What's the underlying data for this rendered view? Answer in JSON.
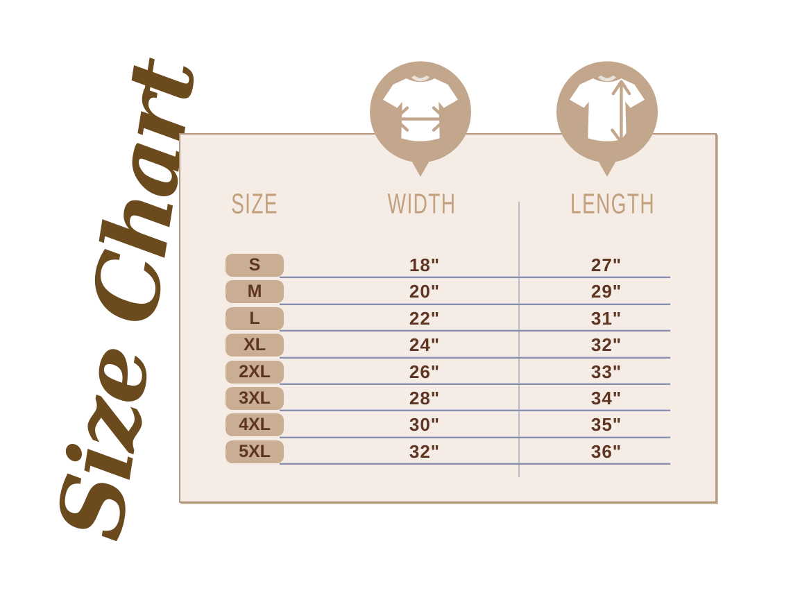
{
  "title": {
    "script_text": "Size Chart"
  },
  "colors": {
    "page_background": "#ffffff",
    "script_brown": "#6b4a1d",
    "panel_background": "#f5ece6",
    "panel_border": "#b2977e",
    "badge_tan": "#c9ae94",
    "pin_tan": "#c3a78c",
    "header_tan": "#c2a07d",
    "text_brown": "#5e3522",
    "row_line_blue": "#8a8fae",
    "divider_blue": "#b7bbcb"
  },
  "icons": {
    "width_pin": "tshirt-width-arrow-icon",
    "length_pin": "tshirt-length-arrow-icon"
  },
  "table": {
    "headers": [
      "SIZE",
      "WIDTH",
      "LENGTH"
    ],
    "rows": [
      {
        "size": "S",
        "width": "18\"",
        "length": "27\""
      },
      {
        "size": "M",
        "width": "20\"",
        "length": "29\""
      },
      {
        "size": "L",
        "width": "22\"",
        "length": "31\""
      },
      {
        "size": "XL",
        "width": "24\"",
        "length": "32\""
      },
      {
        "size": "2XL",
        "width": "26\"",
        "length": "33\""
      },
      {
        "size": "3XL",
        "width": "28\"",
        "length": "34\""
      },
      {
        "size": "4XL",
        "width": "30\"",
        "length": "35\""
      },
      {
        "size": "5XL",
        "width": "32\"",
        "length": "36\""
      }
    ]
  },
  "chart_data": {
    "type": "table",
    "title": "Size Chart",
    "columns": [
      "SIZE",
      "WIDTH",
      "LENGTH"
    ],
    "rows": [
      [
        "S",
        "18\"",
        "27\""
      ],
      [
        "M",
        "20\"",
        "29\""
      ],
      [
        "L",
        "22\"",
        "31\""
      ],
      [
        "XL",
        "24\"",
        "32\""
      ],
      [
        "2XL",
        "26\"",
        "33\""
      ],
      [
        "3XL",
        "28\"",
        "34\""
      ],
      [
        "4XL",
        "30\"",
        "35\""
      ],
      [
        "5XL",
        "32\"",
        "36\""
      ]
    ]
  }
}
